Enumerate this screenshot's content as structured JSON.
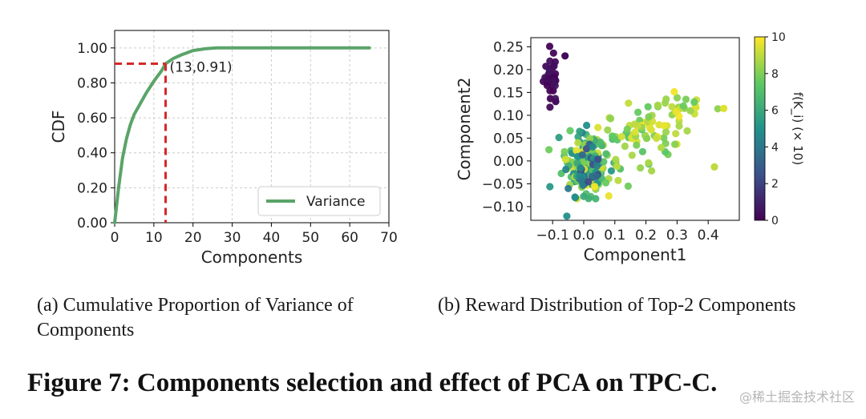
{
  "chart_data": [
    {
      "type": "line",
      "xlabel": "Components",
      "ylabel": "CDF",
      "xlim": [
        0,
        70
      ],
      "ylim": [
        0,
        1.1
      ],
      "xticks": [
        "0",
        "10",
        "20",
        "30",
        "40",
        "50",
        "60",
        "70"
      ],
      "yticks": [
        "0.00",
        "0.20",
        "0.40",
        "0.60",
        "0.80",
        "1.00"
      ],
      "grid": true,
      "legend_position": "bottom-right",
      "series": [
        {
          "name": "Variance",
          "color": "#5aa469",
          "x": [
            0,
            1,
            2,
            3,
            4,
            5,
            6,
            8,
            10,
            12,
            13,
            15,
            17,
            20,
            23,
            26,
            30,
            40,
            50,
            65
          ],
          "y": [
            0,
            0.2,
            0.37,
            0.48,
            0.56,
            0.62,
            0.66,
            0.74,
            0.81,
            0.87,
            0.91,
            0.94,
            0.96,
            0.985,
            0.995,
            1.0,
            1.0,
            1.0,
            1.0,
            1.0
          ]
        }
      ],
      "marker": {
        "x": 13,
        "y": 0.91,
        "label": "(13,0.91)",
        "color": "#d62728"
      }
    },
    {
      "type": "scatter",
      "xlabel": "Component1",
      "ylabel": "Component2",
      "xlim": [
        -0.17,
        0.5
      ],
      "ylim": [
        -0.13,
        0.27
      ],
      "xticks": [
        "−0.1",
        "0.0",
        "0.1",
        "0.2",
        "0.3",
        "0.4"
      ],
      "yticks": [
        "−0.10",
        "−0.05",
        "0.00",
        "0.05",
        "0.10",
        "0.15",
        "0.20",
        "0.25"
      ],
      "colorbar": {
        "label": "f(K_i) (× 10)",
        "range": [
          0,
          10
        ],
        "ticks": [
          "0",
          "2",
          "4",
          "6",
          "8",
          "10"
        ],
        "colors": [
          "#440154",
          "#3b528b",
          "#21918c",
          "#5ec962",
          "#fde725"
        ]
      },
      "clusters": [
        {
          "cx": -0.105,
          "cy": 0.19,
          "sx": 0.012,
          "sy": 0.03,
          "n": 32,
          "cmin": 0,
          "cmax": 0.6
        },
        {
          "cx": 0.01,
          "cy": -0.01,
          "sx": 0.035,
          "sy": 0.03,
          "n": 190,
          "cmin": 5,
          "cmax": 10
        },
        {
          "cx": 0.17,
          "cy": 0.05,
          "sx": 0.07,
          "sy": 0.04,
          "n": 70,
          "cmin": 7,
          "cmax": 10
        },
        {
          "cx": 0.3,
          "cy": 0.12,
          "sx": 0.04,
          "sy": 0.015,
          "n": 22,
          "cmin": 7.5,
          "cmax": 10
        },
        {
          "cx": 0.0,
          "cy": -0.02,
          "sx": 0.03,
          "sy": 0.04,
          "n": 40,
          "cmin": 2,
          "cmax": 6
        }
      ],
      "extra_points": [
        {
          "x": -0.06,
          "y": 0.23,
          "c": 0.3
        },
        {
          "x": 0.45,
          "y": 0.115,
          "c": 9.5
        },
        {
          "x": 0.42,
          "y": -0.013,
          "c": 9
        },
        {
          "x": -0.09,
          "y": 0.13,
          "c": 0.4
        }
      ]
    }
  ],
  "captions": {
    "a": "(a)  Cumulative Proportion of Variance of Components",
    "b": "(b)  Reward Distribution of Top-2 Components",
    "figure": "Figure 7: Components selection and effect of PCA on TPC-C."
  },
  "watermark": "@稀土掘金技术社区"
}
